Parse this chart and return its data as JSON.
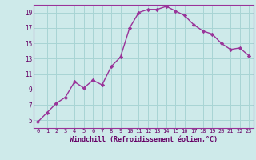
{
  "x": [
    0,
    1,
    2,
    3,
    4,
    5,
    6,
    7,
    8,
    9,
    10,
    11,
    12,
    13,
    14,
    15,
    16,
    17,
    18,
    19,
    20,
    21,
    22,
    23
  ],
  "y": [
    4.8,
    6.0,
    7.2,
    8.0,
    10.0,
    9.2,
    10.2,
    9.6,
    12.0,
    13.2,
    17.0,
    19.0,
    19.4,
    19.4,
    19.8,
    19.2,
    18.6,
    17.4,
    16.6,
    16.2,
    15.0,
    14.2,
    14.4,
    13.4
  ],
  "line_color": "#993399",
  "marker": "D",
  "marker_size": 2.2,
  "bg_color": "#ceeaea",
  "grid_color": "#a8d4d4",
  "xlabel": "Windchill (Refroidissement éolien,°C)",
  "xlabel_color": "#660066",
  "tick_color": "#660066",
  "ylim": [
    4,
    20
  ],
  "xlim": [
    -0.5,
    23.5
  ],
  "yticks": [
    5,
    7,
    9,
    11,
    13,
    15,
    17,
    19
  ],
  "xticks": [
    0,
    1,
    2,
    3,
    4,
    5,
    6,
    7,
    8,
    9,
    10,
    11,
    12,
    13,
    14,
    15,
    16,
    17,
    18,
    19,
    20,
    21,
    22,
    23
  ],
  "xtick_labels": [
    "0",
    "1",
    "2",
    "3",
    "4",
    "5",
    "6",
    "7",
    "8",
    "9",
    "10",
    "11",
    "12",
    "13",
    "14",
    "15",
    "16",
    "17",
    "18",
    "19",
    "20",
    "21",
    "22",
    "23"
  ],
  "ytick_labels": [
    "5",
    "7",
    "9",
    "11",
    "13",
    "15",
    "17",
    "19"
  ]
}
